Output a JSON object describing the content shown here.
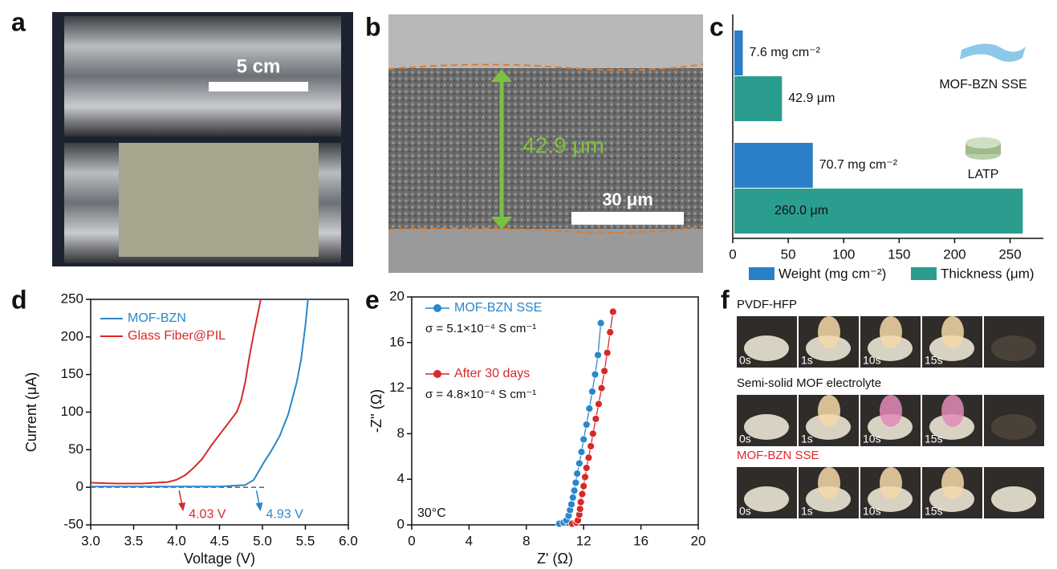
{
  "panel_labels": [
    "a",
    "b",
    "c",
    "d",
    "e",
    "f"
  ],
  "photo_a": {
    "scale_label": "5 cm"
  },
  "photo_b": {
    "thickness_label": "42.9 μm",
    "scale_label": "30 μm"
  },
  "chart_data": [
    {
      "type": "bar",
      "horizontal": true,
      "frame": "open",
      "legend": "bottom",
      "categories": [
        "MOF-BZN SSE",
        "LATP"
      ],
      "series": [
        {
          "name": "Weight (mg cm⁻²)",
          "color": "#2b7fc9",
          "values": [
            7.6,
            70.7
          ],
          "value_labels": [
            "7.6 mg cm⁻²",
            "70.7 mg cm⁻²"
          ]
        },
        {
          "name": "Thickness (μm)",
          "color": "#2a9d8f",
          "values": [
            42.9,
            260.0
          ],
          "value_labels": [
            "42.9 μm",
            "260.0 μm"
          ]
        }
      ],
      "xlim": [
        0,
        280
      ],
      "xticks": [
        0,
        50,
        100,
        150,
        200,
        250
      ]
    },
    {
      "type": "line",
      "frame": "box",
      "legend": "upper left",
      "xlabel": "Voltage (V)",
      "ylabel": "Current (μA)",
      "series": [
        {
          "name": "MOF-BZN",
          "color": "#2a87c9",
          "x": [
            3.0,
            3.5,
            4.0,
            4.5,
            4.8,
            4.9,
            5.0,
            5.1,
            5.2,
            5.3,
            5.4,
            5.45,
            5.5,
            5.53
          ],
          "values": [
            1,
            1,
            1,
            1,
            3,
            10,
            30,
            48,
            68,
            97,
            140,
            170,
            215,
            250
          ],
          "onset": 4.93,
          "onset_label": "4.93 V"
        },
        {
          "name": "Glass Fiber@PIL",
          "color": "#d62a2a",
          "x": [
            3.0,
            3.3,
            3.6,
            3.9,
            4.0,
            4.1,
            4.2,
            4.3,
            4.4,
            4.5,
            4.6,
            4.7,
            4.75,
            4.8,
            4.85,
            4.9,
            4.95,
            4.98
          ],
          "values": [
            6,
            5,
            5,
            7,
            10,
            16,
            26,
            38,
            55,
            70,
            85,
            100,
            115,
            140,
            175,
            205,
            233,
            250
          ],
          "onset": 4.03,
          "onset_label": "4.03 V"
        }
      ],
      "xlim": [
        3,
        6
      ],
      "ylim": [
        -50,
        250
      ],
      "xticks": [
        {
          "value": 3,
          "label": "3.0"
        },
        {
          "value": 3.5,
          "label": "3.5"
        },
        {
          "value": 4,
          "label": "4.0"
        },
        {
          "value": 4.5,
          "label": "4.5"
        },
        {
          "value": 5,
          "label": "5.0"
        },
        {
          "value": 5.5,
          "label": "5.5"
        },
        {
          "value": 6,
          "label": "6.0"
        }
      ],
      "yticks": [
        -50,
        0,
        50,
        100,
        150,
        200,
        250
      ]
    },
    {
      "type": "scatter",
      "frame": "box",
      "legend": "upper left",
      "xlabel": "Z' (Ω)",
      "ylabel": "-Z'' (Ω)",
      "annotation": "30°C",
      "series": [
        {
          "name": "MOF-BZN SSE",
          "color": "#2a87c9",
          "sigma_label": "σ = 5.1×10⁻⁴ S cm⁻¹",
          "x": [
            10.3,
            10.6,
            10.8,
            10.95,
            11.05,
            11.15,
            11.25,
            11.35,
            11.45,
            11.55,
            11.7,
            11.85,
            12.0,
            12.2,
            12.4,
            12.6,
            12.8,
            13.0,
            13.2
          ],
          "values": [
            0.1,
            0.2,
            0.4,
            0.8,
            1.3,
            1.8,
            2.4,
            3.0,
            3.7,
            4.5,
            5.4,
            6.4,
            7.5,
            8.8,
            10.2,
            11.7,
            13.2,
            14.9,
            17.7
          ]
        },
        {
          "name": "After 30 days",
          "color": "#d62a2a",
          "sigma_label": "σ = 4.8×10⁻⁴ S cm⁻¹",
          "x": [
            11.2,
            11.5,
            11.6,
            11.7,
            11.75,
            11.8,
            11.9,
            12.0,
            12.1,
            12.2,
            12.35,
            12.5,
            12.65,
            12.85,
            13.05,
            13.25,
            13.45,
            13.65,
            13.85,
            14.05
          ],
          "values": [
            0.1,
            0.2,
            0.4,
            0.9,
            1.4,
            2.0,
            2.7,
            3.4,
            4.2,
            5.0,
            5.9,
            6.9,
            8.0,
            9.3,
            10.6,
            12.0,
            13.5,
            15.1,
            16.9,
            18.7
          ]
        }
      ],
      "xlim": [
        0,
        20
      ],
      "ylim": [
        0,
        20
      ],
      "xticks": [
        0,
        4,
        8,
        12,
        16,
        20
      ],
      "yticks": [
        0,
        4,
        8,
        12,
        16,
        20
      ]
    }
  ],
  "photo_rows": [
    {
      "label": "PVDF-HFP",
      "times": [
        "0s",
        "1s",
        "10s",
        "15s"
      ]
    },
    {
      "label": "Semi-solid MOF electrolyte",
      "times": [
        "0s",
        "1s",
        "10s",
        "15s"
      ]
    },
    {
      "label": "MOF-BZN SSE",
      "times": [
        "0s",
        "1s",
        "10s",
        "15s"
      ]
    }
  ]
}
